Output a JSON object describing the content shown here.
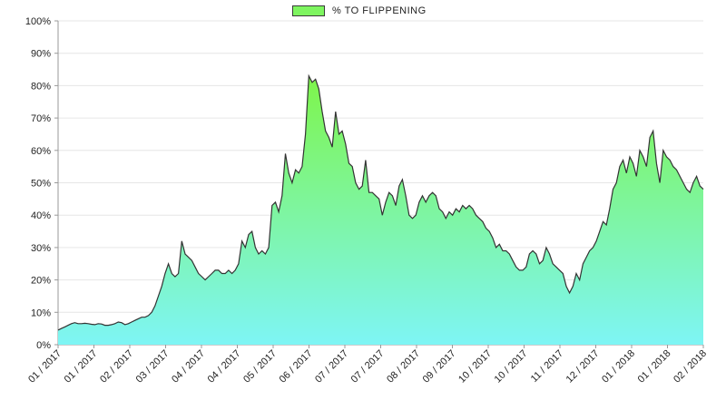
{
  "chart_data": {
    "type": "area",
    "legend": {
      "label": "% TO FLIPPENING",
      "color": "#7ef560",
      "placement": "top-center"
    },
    "yticks": [
      "0%",
      "10%",
      "20%",
      "30%",
      "40%",
      "50%",
      "60%",
      "70%",
      "80%",
      "90%",
      "100%"
    ],
    "ylim": [
      0,
      100
    ],
    "xticks": [
      "01 / 2017",
      "01 / 2017",
      "02 / 2017",
      "03 / 2017",
      "04 / 2017",
      "04 / 2017",
      "05 / 2017",
      "06 / 2017",
      "07 / 2017",
      "07 / 2017",
      "08 / 2017",
      "09 / 2017",
      "10 / 2017",
      "10 / 2017",
      "11 / 2017",
      "12 / 2017",
      "01 / 2018",
      "01 / 2018",
      "02 / 2018"
    ],
    "gradient": {
      "top": "#7ef54a",
      "bottom": "#7ef5f5"
    },
    "line_color": "#333333",
    "grid": true,
    "series": [
      {
        "values": [
          4.5,
          5,
          5.5,
          6,
          6.5,
          6.8,
          6.5,
          6.5,
          6.6,
          6.5,
          6.3,
          6.2,
          6.5,
          6.4,
          6,
          6,
          6.2,
          6.5,
          7,
          6.8,
          6.2,
          6.5,
          7,
          7.5,
          8,
          8.5,
          8.5,
          9,
          10,
          12,
          15,
          18,
          22,
          25,
          22,
          21,
          22,
          32,
          28,
          27,
          26,
          24,
          22,
          21,
          20,
          21,
          22,
          23,
          23,
          22,
          22,
          23,
          22,
          23,
          25,
          32,
          30,
          34,
          35,
          30,
          28,
          29,
          28,
          30,
          43,
          44,
          41,
          46,
          59,
          53,
          50,
          54,
          53,
          55,
          65,
          83,
          81,
          82,
          79,
          72,
          66,
          64,
          61,
          72,
          65,
          66,
          62,
          56,
          55,
          50,
          48,
          49,
          57,
          47,
          47,
          46,
          45,
          40,
          44,
          47,
          46,
          43,
          49,
          51,
          46,
          40,
          39,
          40,
          44,
          46,
          44,
          46,
          47,
          46,
          42,
          41,
          39,
          41,
          40,
          42,
          41,
          43,
          42,
          43,
          42,
          40,
          39,
          38,
          36,
          35,
          33,
          30,
          31,
          29,
          29,
          28,
          26,
          24,
          23,
          23,
          24,
          28,
          29,
          28,
          25,
          26,
          30,
          28,
          25,
          24,
          23,
          22,
          18,
          16,
          18,
          22,
          20,
          25,
          27,
          29,
          30,
          32,
          35,
          38,
          37,
          42,
          48,
          50,
          55,
          57,
          53,
          58,
          56,
          52,
          60,
          58,
          55,
          64,
          66,
          56,
          50,
          60,
          58,
          57,
          55,
          54,
          52,
          50,
          48,
          47,
          50,
          52,
          49,
          48
        ]
      }
    ]
  }
}
